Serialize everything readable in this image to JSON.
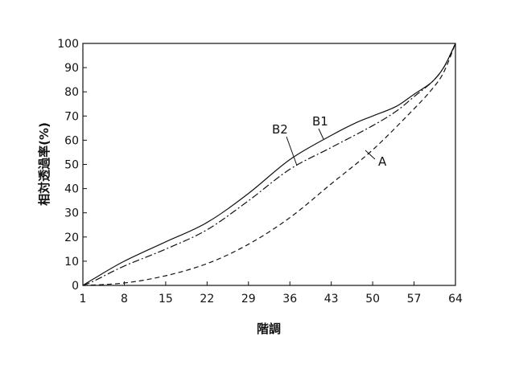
{
  "chart_data": {
    "type": "line",
    "xlabel": "階調",
    "ylabel": "相対透過率(%)",
    "x_ticks": [
      "1",
      "8",
      "15",
      "22",
      "29",
      "36",
      "43",
      "50",
      "57",
      "64"
    ],
    "y_ticks": [
      "0",
      "10",
      "20",
      "30",
      "40",
      "50",
      "60",
      "70",
      "80",
      "90",
      "100"
    ],
    "xlim": [
      1,
      64
    ],
    "ylim": [
      0,
      100
    ],
    "grid": false,
    "series": [
      {
        "name": "B1",
        "style": "solid",
        "x": [
          1,
          3,
          8,
          15,
          22,
          29,
          36,
          43,
          47,
          50,
          54,
          57,
          60,
          62,
          64
        ],
        "y": [
          0,
          3,
          10,
          18,
          26,
          38,
          52,
          62,
          67,
          70,
          74,
          79,
          84,
          90,
          100
        ]
      },
      {
        "name": "B2",
        "style": "dash-dot",
        "x": [
          1,
          3,
          8,
          15,
          22,
          29,
          36,
          43,
          50,
          54,
          57,
          60,
          62,
          64
        ],
        "y": [
          0,
          2,
          8,
          15,
          23,
          35,
          48,
          57,
          66,
          72,
          78,
          84,
          90,
          100
        ]
      },
      {
        "name": "A",
        "style": "dashed",
        "x": [
          1,
          8,
          15,
          22,
          29,
          36,
          43,
          50,
          57,
          60,
          62,
          64
        ],
        "y": [
          0,
          1,
          4,
          9,
          17,
          28,
          42,
          56,
          73,
          81,
          88,
          100
        ]
      }
    ],
    "annotations": [
      {
        "text": "B1",
        "target": "B1"
      },
      {
        "text": "B2",
        "target": "B2"
      },
      {
        "text": "A",
        "target": "A"
      }
    ]
  }
}
